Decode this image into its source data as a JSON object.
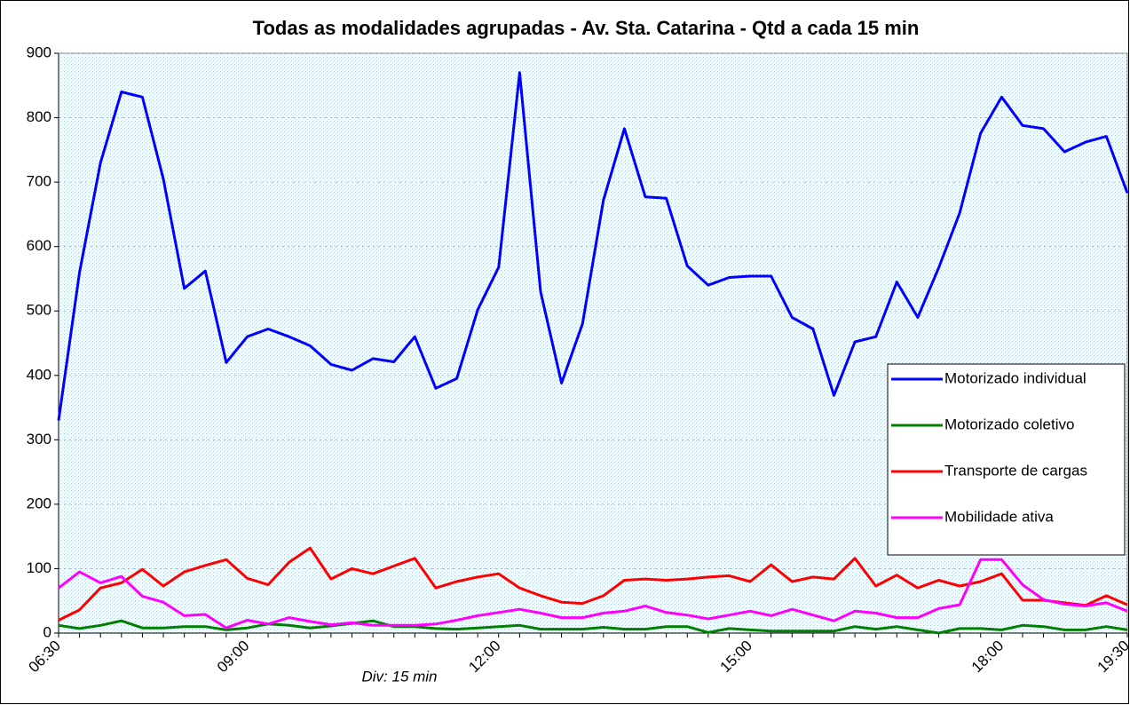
{
  "chart_data": {
    "type": "line",
    "title": "Todas as modalidades agrupadas - Av. Sta. Catarina - Qtd a cada 15 min",
    "x_label": "Div: 15 min",
    "categories": [
      "06:30",
      null,
      null,
      null,
      null,
      null,
      null,
      null,
      null,
      "09:00",
      null,
      null,
      null,
      null,
      null,
      null,
      null,
      null,
      null,
      null,
      null,
      "12:00",
      null,
      null,
      null,
      null,
      null,
      null,
      null,
      null,
      null,
      null,
      null,
      "15:00",
      null,
      null,
      null,
      null,
      null,
      null,
      null,
      null,
      null,
      null,
      null,
      "18:00",
      null,
      null,
      null,
      null,
      null,
      "19:30"
    ],
    "ylim": [
      0,
      900
    ],
    "yticks": [
      0,
      100,
      200,
      300,
      400,
      500,
      600,
      700,
      800,
      900
    ],
    "grid": true,
    "legend": "right",
    "series": [
      {
        "name": "Motorizado individual",
        "color": "#0000ff",
        "values": [
          330,
          560,
          730,
          840,
          832,
          705,
          535,
          562,
          420,
          460,
          472,
          460,
          446,
          417,
          408,
          426,
          421,
          460,
          380,
          395,
          502,
          568,
          870,
          530,
          388,
          480,
          672,
          783,
          677,
          675,
          570,
          540,
          552,
          554,
          554,
          490,
          472,
          369,
          452,
          460,
          545,
          490,
          567,
          652,
          776,
          832,
          788,
          783,
          747,
          762,
          771,
          683
        ]
      },
      {
        "name": "Motorizado coletivo",
        "color": "#008000",
        "values": [
          12,
          7,
          12,
          19,
          8,
          8,
          10,
          10,
          5,
          8,
          14,
          12,
          8,
          11,
          15,
          19,
          10,
          10,
          7,
          6,
          8,
          10,
          12,
          6,
          6,
          6,
          9,
          6,
          6,
          10,
          10,
          1,
          7,
          5,
          3,
          3,
          3,
          3,
          10,
          6,
          10,
          5,
          0,
          7,
          7,
          5,
          12,
          10,
          5,
          5,
          10,
          5
        ]
      },
      {
        "name": "Transporte de cargas",
        "color": "#ff0000",
        "values": [
          20,
          36,
          70,
          78,
          99,
          73,
          95,
          105,
          114,
          85,
          75,
          110,
          132,
          84,
          100,
          92,
          104,
          116,
          70,
          80,
          87,
          92,
          70,
          58,
          48,
          46,
          58,
          82,
          84,
          82,
          84,
          87,
          89,
          80,
          106,
          80,
          87,
          84,
          116,
          73,
          90,
          70,
          82,
          73,
          80,
          92,
          51,
          51,
          47,
          43,
          58,
          44
        ]
      },
      {
        "name": "Mobilidade ativa",
        "color": "#ff00ff",
        "values": [
          70,
          95,
          78,
          88,
          57,
          48,
          27,
          29,
          8,
          20,
          14,
          24,
          18,
          13,
          16,
          12,
          12,
          12,
          14,
          20,
          27,
          32,
          37,
          31,
          24,
          24,
          31,
          34,
          42,
          32,
          28,
          22,
          28,
          34,
          27,
          37,
          28,
          19,
          34,
          31,
          24,
          24,
          38,
          44,
          114,
          114,
          75,
          52,
          45,
          42,
          47,
          34
        ]
      }
    ]
  }
}
